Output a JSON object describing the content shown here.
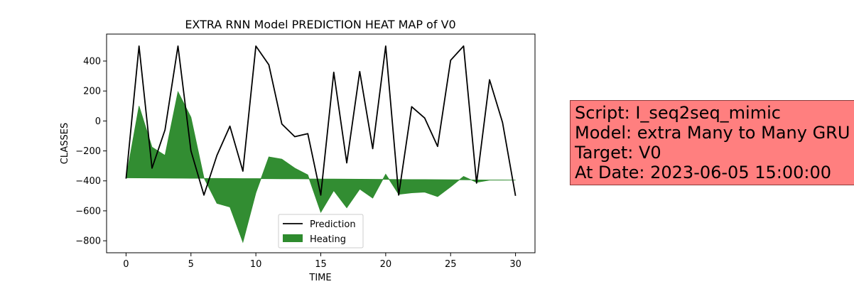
{
  "chart_data": {
    "type": "line",
    "title": "EXTRA RNN Model PREDICTION HEAT MAP of V0",
    "xlabel": "TIME",
    "ylabel": "CLASSES",
    "xlim": [
      -1.5,
      31.5
    ],
    "ylim": [
      -880,
      580
    ],
    "xticks": [
      0,
      5,
      10,
      15,
      20,
      25,
      30
    ],
    "xtick_labels": [
      "0",
      "5",
      "10",
      "15",
      "20",
      "25",
      "30"
    ],
    "yticks": [
      400,
      200,
      0,
      -200,
      -400,
      -600,
      -800
    ],
    "ytick_labels": [
      "400",
      "200",
      "0",
      "−200",
      "−400",
      "−600",
      "−800"
    ],
    "grid": false,
    "legend_position": "bottom-center",
    "x": [
      0,
      1,
      2,
      3,
      4,
      5,
      6,
      7,
      8,
      9,
      10,
      11,
      12,
      13,
      14,
      15,
      16,
      17,
      18,
      19,
      20,
      21,
      22,
      23,
      24,
      25,
      26,
      27,
      28,
      29,
      30
    ],
    "series": [
      {
        "name": "Prediction",
        "kind": "line",
        "color": "#000000",
        "values": [
          -385,
          500,
          -315,
          -60,
          500,
          -200,
          -495,
          -230,
          -35,
          -335,
          500,
          375,
          -20,
          -105,
          -85,
          -495,
          325,
          -280,
          330,
          -185,
          500,
          -495,
          95,
          20,
          -170,
          405,
          500,
          -415,
          275,
          -10,
          -500
        ]
      },
      {
        "name": "Heating",
        "kind": "area",
        "color": "#2e8b2e",
        "values": [
          -380,
          100,
          -175,
          -230,
          195,
          25,
          -380,
          -550,
          -575,
          -810,
          -480,
          -240,
          -255,
          -315,
          -360,
          -610,
          -465,
          -580,
          -455,
          -515,
          -355,
          -490,
          -480,
          -475,
          -505,
          -440,
          -370,
          -410,
          -395,
          -395,
          -395
        ],
        "baseline": [
          -380,
          -380.5,
          -381,
          -381.5,
          -382,
          -382.5,
          -383,
          -383.5,
          -384,
          -384.5,
          -385,
          -385.5,
          -386,
          -386.5,
          -387,
          -387.5,
          -388,
          -388.5,
          -389,
          -389.5,
          -390,
          -390.5,
          -391,
          -391.5,
          -392,
          -392.5,
          -393,
          -393.5,
          -394,
          -394.5,
          -395
        ]
      }
    ]
  },
  "info_box": {
    "background": "#ff7f7f",
    "lines": [
      "Script: I_seq2seq_mimic",
      "Model: extra Many to Many GRU",
      "Target: V0",
      "At Date: 2023-06-05 15:00:00"
    ]
  }
}
